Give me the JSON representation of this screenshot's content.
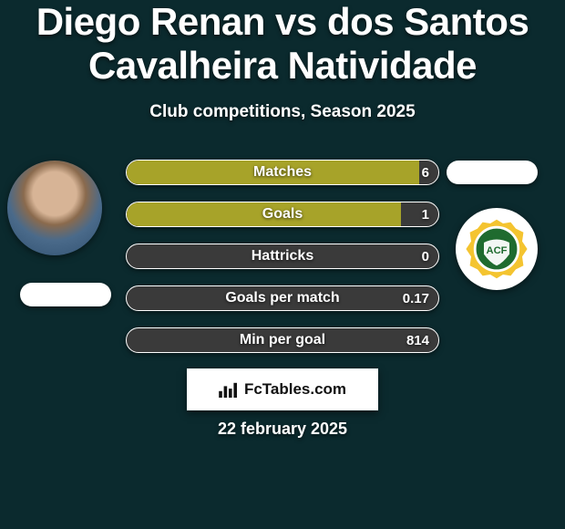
{
  "background_color": "#0b2a2e",
  "heading": {
    "text": "Diego Renan vs dos Santos Cavalheira Natividade",
    "color": "#ffffff",
    "fontsize": 42
  },
  "subtitle": {
    "text": "Club competitions, Season 2025",
    "color": "#ffffff",
    "fontsize": 19
  },
  "left_entity": {
    "type": "player",
    "avatar_kind": "photo"
  },
  "right_entity": {
    "type": "club",
    "club_name": "Chapecoense",
    "badge_primary": "#1f6b2f",
    "badge_accent": "#f4c430",
    "badge_text": "ACF"
  },
  "pill_color": "#ffffff",
  "stats": {
    "type": "bar",
    "bar_bg": "#3a3a3a",
    "bar_border": "#ffffff",
    "fill_color": "#a7a329",
    "label_color": "#ffffff",
    "value_color": "#ffffff",
    "label_fontsize": 16,
    "value_fontsize": 15,
    "rows": [
      {
        "label": "Matches",
        "value": "6",
        "fill_pct": 94
      },
      {
        "label": "Goals",
        "value": "1",
        "fill_pct": 88
      },
      {
        "label": "Hattricks",
        "value": "0",
        "fill_pct": 0
      },
      {
        "label": "Goals per match",
        "value": "0.17",
        "fill_pct": 0
      },
      {
        "label": "Min per goal",
        "value": "814",
        "fill_pct": 0
      }
    ]
  },
  "brand": {
    "text": "FcTables.com",
    "box_bg": "#ffffff",
    "text_color": "#111111"
  },
  "date": {
    "text": "22 february 2025",
    "color": "#ffffff",
    "fontsize": 18
  }
}
